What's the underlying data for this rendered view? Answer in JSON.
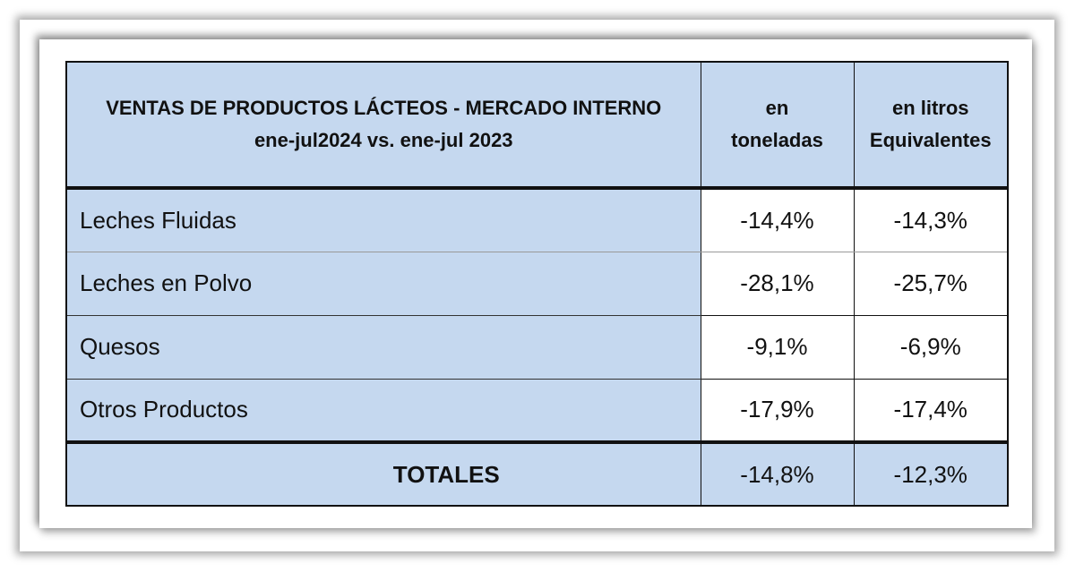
{
  "table": {
    "header": {
      "title_line1": "VENTAS DE PRODUCTOS LÁCTEOS - MERCADO INTERNO",
      "title_line2": "ene-jul2024 vs. ene-jul 2023",
      "col_tons_line1": "en",
      "col_tons_line2": "toneladas",
      "col_liters_line1": "en litros",
      "col_liters_line2": "Equivalentes"
    },
    "rows": [
      {
        "label": "Leches Fluidas",
        "tons": "-14,4%",
        "liters": "-14,3%"
      },
      {
        "label": "Leches en Polvo",
        "tons": "-28,1%",
        "liters": "-25,7%"
      },
      {
        "label": "Quesos",
        "tons": "-9,1%",
        "liters": "-6,9%"
      },
      {
        "label": "Otros Productos",
        "tons": "-17,9%",
        "liters": "-17,4%"
      }
    ],
    "totals": {
      "label": "TOTALES",
      "tons": "-14,8%",
      "liters": "-12,3%"
    }
  },
  "colors": {
    "header_fill": "#c5d8ef",
    "border": "#111111",
    "value_fill": "#ffffff"
  }
}
